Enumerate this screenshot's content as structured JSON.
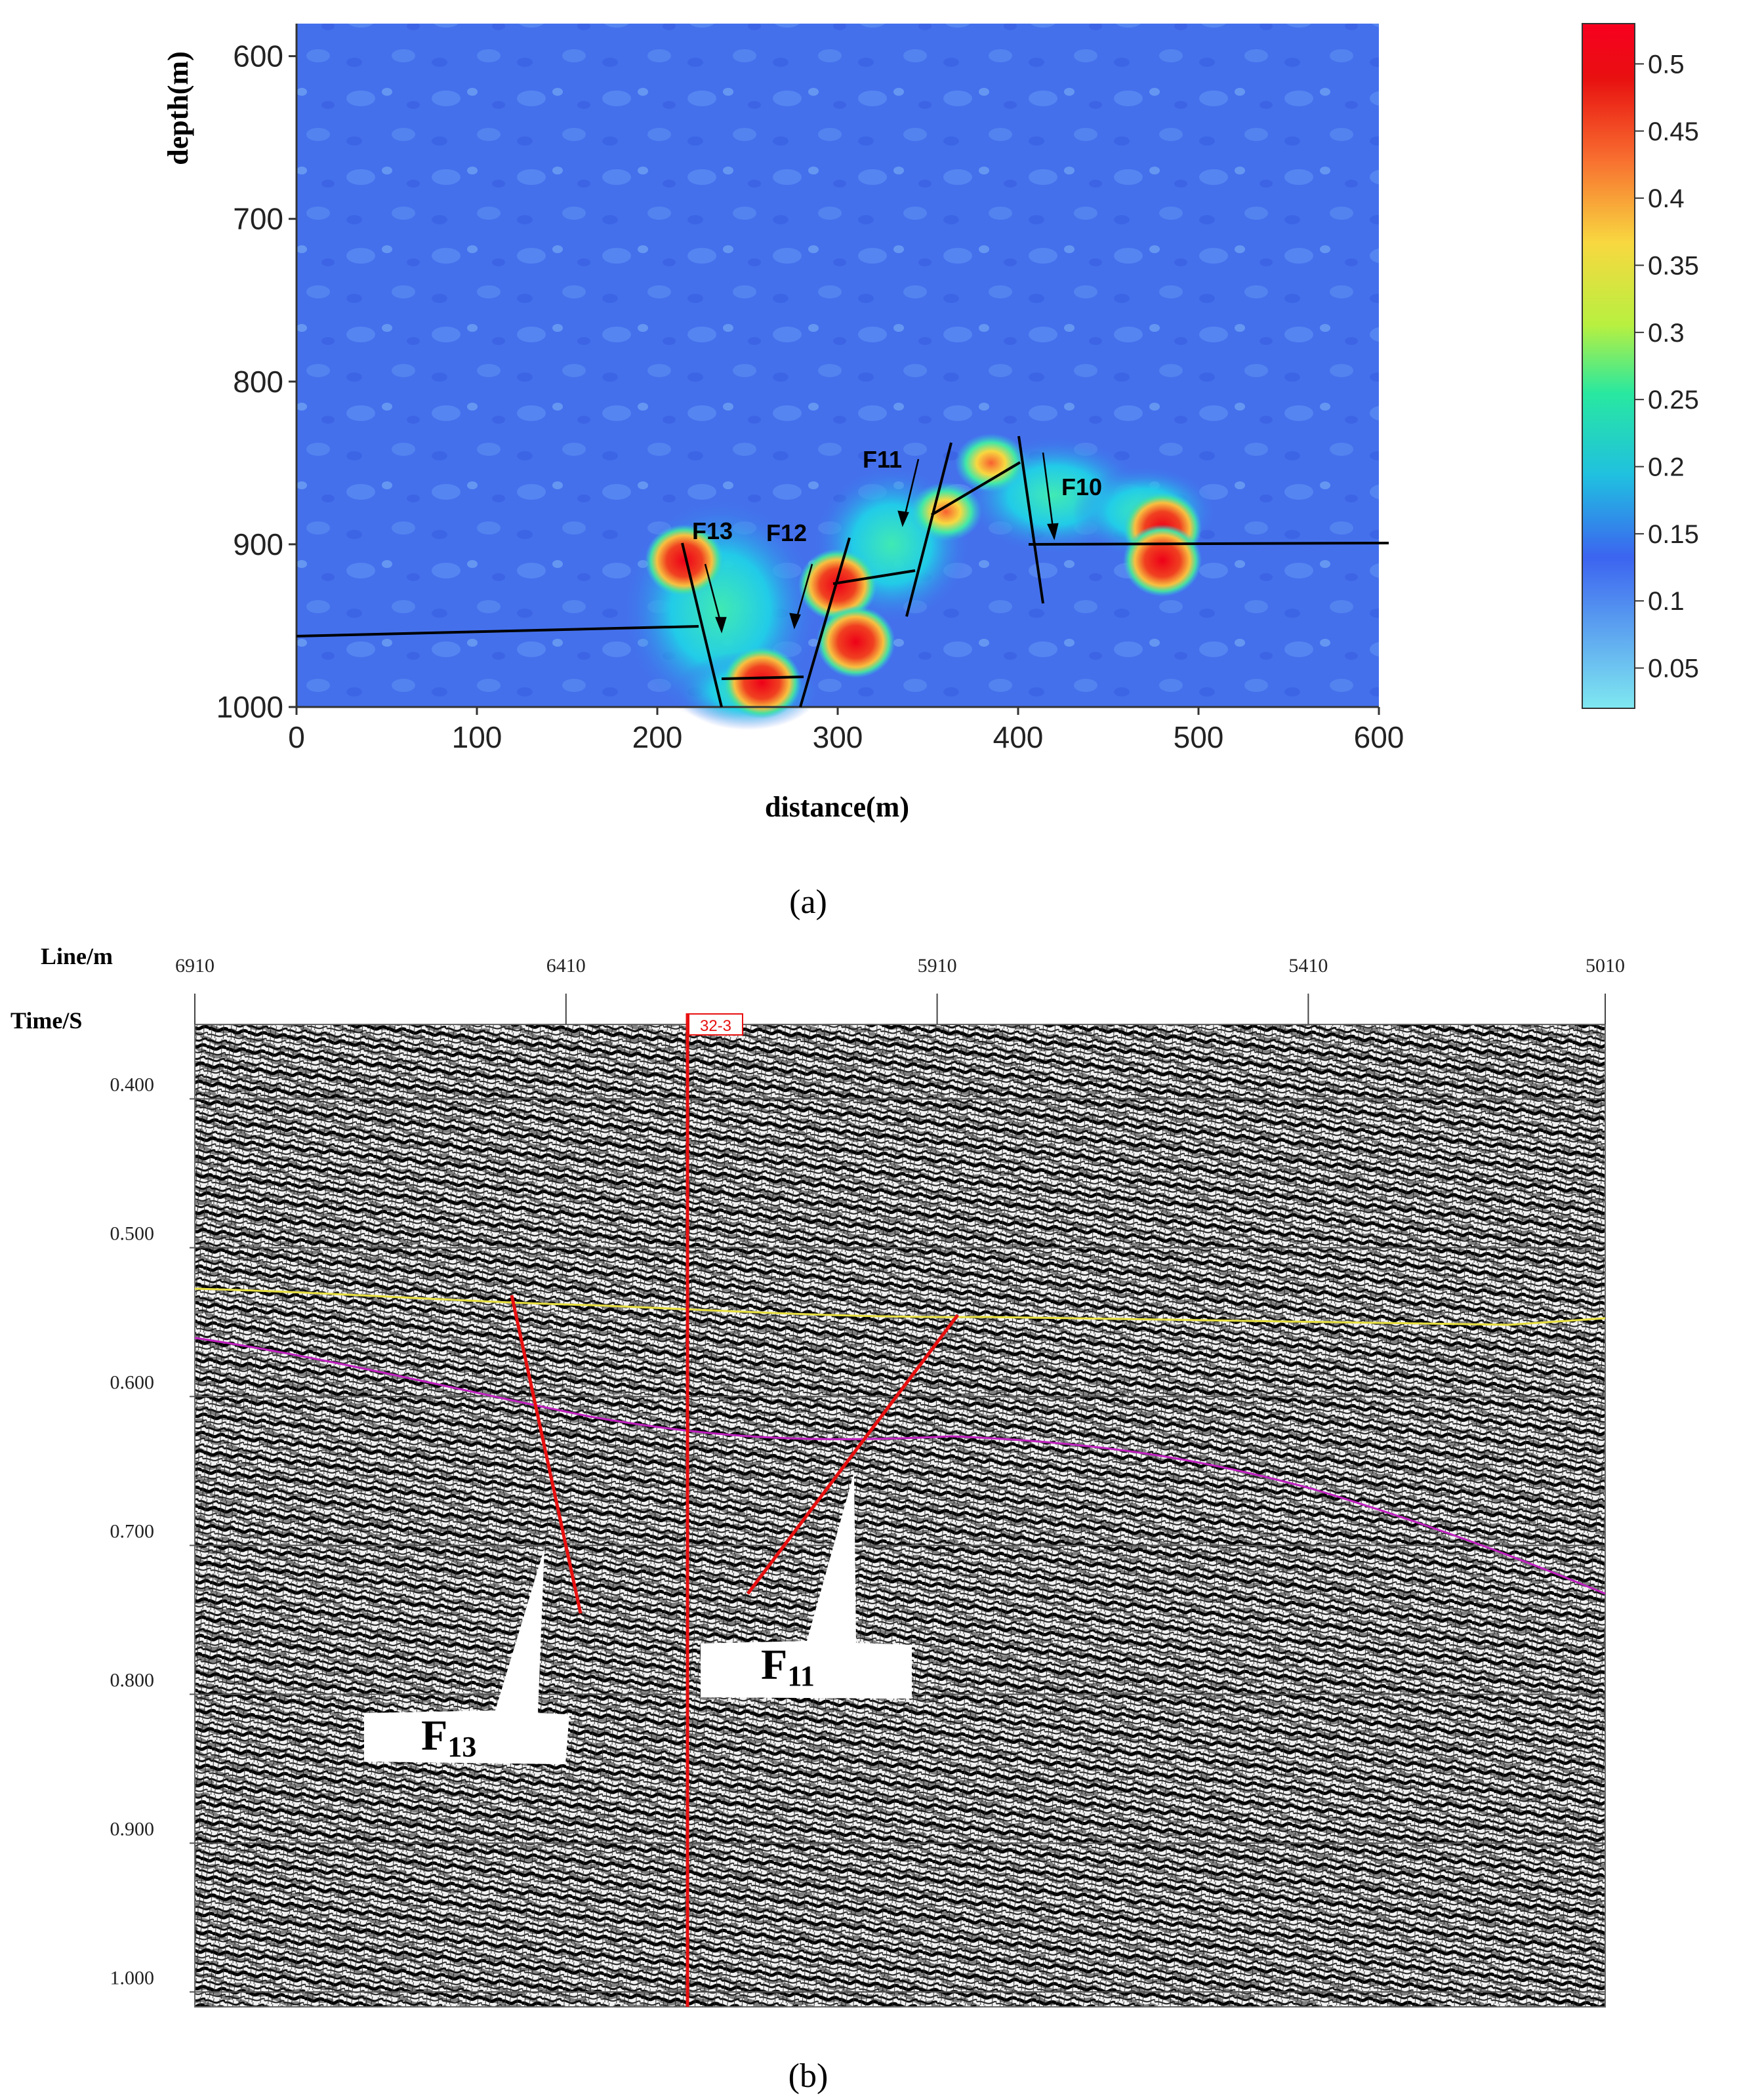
{
  "panel_a": {
    "caption": "(a)",
    "xlabel": "distance(m)",
    "ylabel": "depth(m)",
    "x_ticks": [
      "0",
      "100",
      "200",
      "300",
      "400",
      "500",
      "600"
    ],
    "y_ticks": [
      "600",
      "700",
      "800",
      "900",
      "1000"
    ],
    "colorbar_ticks": [
      "0.5",
      "0.45",
      "0.4",
      "0.35",
      "0.3",
      "0.25",
      "0.2",
      "0.15",
      "0.1",
      "0.05"
    ],
    "fault_labels": [
      "F13",
      "F12",
      "F11",
      "F10"
    ]
  },
  "panel_b": {
    "caption": "(b)",
    "xlabel": "Line/m",
    "ylabel": "Time/S",
    "x_ticks": [
      "6910",
      "6410",
      "5910",
      "5410",
      "5010"
    ],
    "y_ticks": [
      "0.400",
      "0.500",
      "0.600",
      "0.700",
      "0.800",
      "0.900",
      "1.000"
    ],
    "well_label": "32-3",
    "callout_f13": {
      "main": "F",
      "sub": "13"
    },
    "callout_f11": {
      "main": "F",
      "sub": "11"
    }
  },
  "chart_data": [
    {
      "type": "heatmap",
      "x_range": [
        0,
        600
      ],
      "y_range": [
        580,
        1000
      ],
      "y_inverted": true,
      "color_range": [
        0.02,
        0.53
      ],
      "colormap": [
        "#7fe8f0",
        "#3c64f0",
        "#20c0e0",
        "#28e8a0",
        "#b8f040",
        "#f8d840",
        "#f87030",
        "#e81010",
        "#f80020"
      ],
      "anomalies": [
        {
          "x": 215,
          "y": 910,
          "value": 0.5
        },
        {
          "x": 258,
          "y": 985,
          "value": 0.5
        },
        {
          "x": 300,
          "y": 925,
          "value": 0.45
        },
        {
          "x": 310,
          "y": 960,
          "value": 0.45
        },
        {
          "x": 360,
          "y": 880,
          "value": 0.42
        },
        {
          "x": 385,
          "y": 850,
          "value": 0.38
        },
        {
          "x": 480,
          "y": 890,
          "value": 0.45
        },
        {
          "x": 480,
          "y": 910,
          "value": 0.45
        }
      ]
    },
    {
      "type": "seismic-section",
      "x_range": [
        6910,
        5010
      ],
      "y_range": [
        0.35,
        1.01
      ],
      "horizon_colors": {
        "upper": "#e8e040",
        "lower": "#c020c0"
      }
    }
  ]
}
